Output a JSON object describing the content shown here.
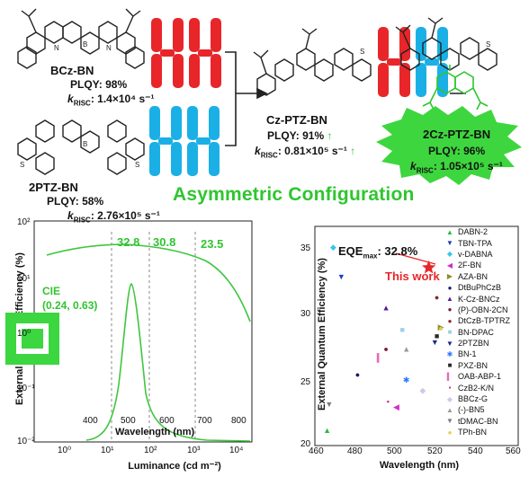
{
  "molecules": {
    "bcz": {
      "name": "BCz-BN",
      "plqy": "PLQY: 98%",
      "krisc_value": ": 1.4×10⁴ s⁻¹"
    },
    "ptz2": {
      "name": "2PTZ-BN",
      "plqy": "PLQY: 58%",
      "krisc_value": ": 2.76×10⁵ s⁻¹"
    },
    "czptz": {
      "name": "Cz-PTZ-BN",
      "plqy": "PLQY: 91%",
      "krisc_value": ": 0.81×10⁵ s⁻¹"
    },
    "cz2ptz": {
      "name": "2Cz-PTZ-BN",
      "plqy": "PLQY: 96%",
      "krisc_value": ": 1.05×10⁵ s⁻¹"
    },
    "krisc_prefix": "k",
    "krisc_sub": "RISC"
  },
  "headline": "Asymmetric Configuration",
  "colors": {
    "red": "#e8262a",
    "blue": "#1ab0e6",
    "green": "#2fc52f",
    "star_burst": "#3ed63e"
  },
  "left_chart": {
    "y_label": "External Quantum Efficiency (%)",
    "x_label": "Luminance (cd m⁻²)",
    "x_ticks": [
      "10⁰",
      "10¹",
      "10²",
      "10³",
      "10⁴"
    ],
    "y_ticks": [
      "10²",
      "10¹",
      "10⁰",
      "10⁻¹",
      "10⁻²"
    ],
    "inset_x_label": "Wavelength (nm)",
    "inset_x_ticks": [
      "400",
      "500",
      "600",
      "700",
      "800"
    ],
    "annotations": [
      "32.8",
      "30.8",
      "23.5"
    ],
    "cie": "CIE\n(0.24, 0.63)"
  },
  "chart_data": {
    "type": "scatter",
    "xlabel": "Wavelength (nm)",
    "ylabel": "External Quantum Efficiency (%)",
    "xlim": [
      460,
      560
    ],
    "ylim": [
      19,
      36
    ],
    "x_ticks": [
      "460",
      "480",
      "500",
      "520",
      "540",
      "560"
    ],
    "y_ticks": [
      "20",
      "25",
      "30",
      "35"
    ],
    "eqe_label": "EQE",
    "eqe_sub": "max",
    "eqe_value": ": 32.8%",
    "this_work_label": "This work",
    "this_work": {
      "x": 516,
      "y": 32.8
    },
    "series": [
      {
        "name": "DABN-2",
        "color": "#2db83d",
        "marker": "▲",
        "x": 466,
        "y": 20.2
      },
      {
        "name": "TBN-TPA",
        "color": "#1f3fb6",
        "marker": "▼",
        "x": 473,
        "y": 32.1
      },
      {
        "name": "v-DABNA",
        "color": "#39c6e8",
        "marker": "◆",
        "x": 469,
        "y": 34.4
      },
      {
        "name": "2F-BN",
        "color": "#d12fc4",
        "marker": "◀",
        "x": 500,
        "y": 22.0
      },
      {
        "name": "AZA-BN",
        "color": "#8e8e2a",
        "marker": "▶",
        "x": 522,
        "y": 28.2
      },
      {
        "name": "DtBuPhCzB",
        "color": "#1a1a6a",
        "marker": "●",
        "x": 481,
        "y": 24.5
      },
      {
        "name": "K-Cz-BNCz",
        "color": "#5a1a9a",
        "marker": "▲",
        "x": 495,
        "y": 29.7
      },
      {
        "name": "(P)-OBN-2CN",
        "color": "#7a1a3a",
        "marker": "●",
        "x": 495,
        "y": 26.5
      },
      {
        "name": "DtCzB-TPTRZ",
        "color": "#8a2a2a",
        "marker": "●",
        "x": 520,
        "y": 30.5
      },
      {
        "name": "BN-DPAC",
        "color": "#9ad0e8",
        "marker": "■",
        "x": 503,
        "y": 28.0
      },
      {
        "name": "2PTZBN",
        "color": "#1a2a8a",
        "marker": "▼",
        "x": 519,
        "y": 27.0
      },
      {
        "name": "BN-1",
        "color": "#2a7aff",
        "marker": "✱",
        "x": 505,
        "y": 24.1
      },
      {
        "name": "PXZ-BN",
        "color": "#2a2a2a",
        "marker": "■",
        "x": 520,
        "y": 27.5
      },
      {
        "name": "OAB-ABP-1",
        "color": "#e86ab8",
        "marker": "▍",
        "x": 492,
        "y": 25.8
      },
      {
        "name": "CzB2-K/N",
        "color": "#d02a8a",
        "marker": "▪",
        "x": 496,
        "y": 22.4
      },
      {
        "name": "BBCz-G",
        "color": "#d0c8e8",
        "marker": "◆",
        "x": 513,
        "y": 23.3
      },
      {
        "name": "(-)-BN5",
        "color": "#9a9a9a",
        "marker": "▲",
        "x": 505,
        "y": 26.5
      },
      {
        "name": "tDMAC-BN",
        "color": "#7a7a7a",
        "marker": "▼",
        "x": 467,
        "y": 22.2
      },
      {
        "name": "TPh-BN",
        "color": "#e0d050",
        "marker": "●",
        "x": 522,
        "y": 28.1
      }
    ]
  }
}
